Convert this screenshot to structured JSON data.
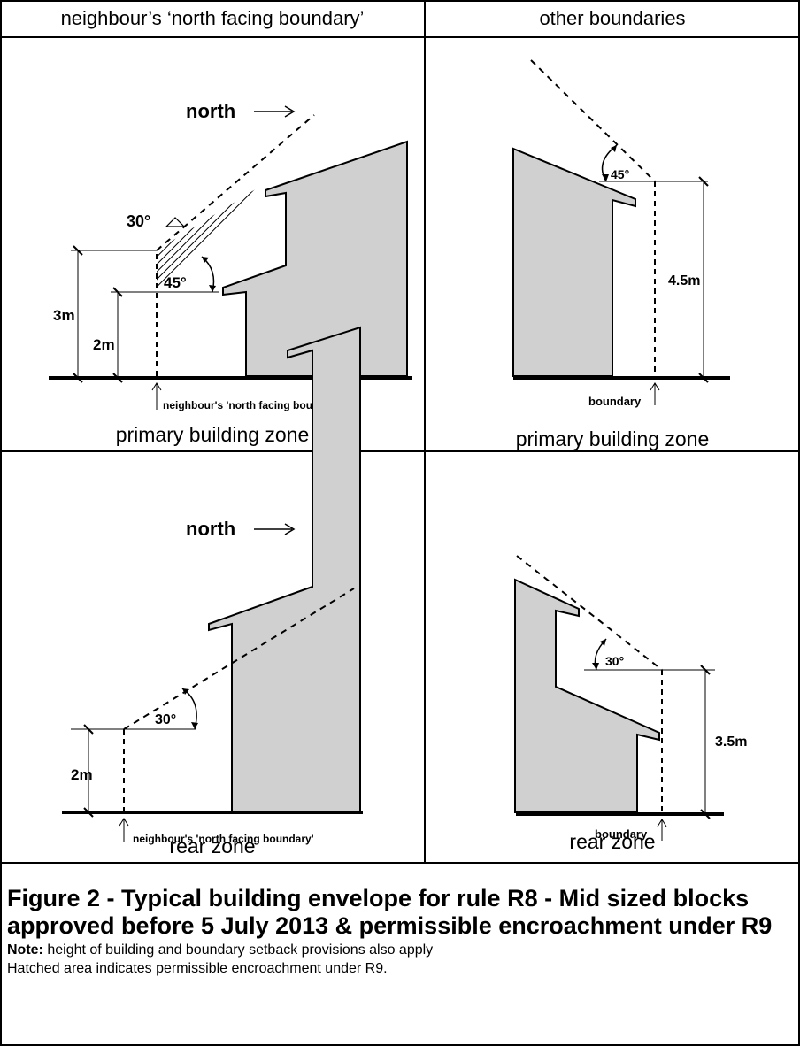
{
  "headers": {
    "left": "neighbour’s ‘north facing boundary’",
    "right": "other boundaries"
  },
  "panels": {
    "top_left": {
      "north_label": "north",
      "angle_small": "30°",
      "angle_main": "45°",
      "height_outer": "3m",
      "height_inner": "2m",
      "boundary_label": "neighbour's 'north facing boundary'",
      "zone": "primary building zone"
    },
    "top_right": {
      "angle": "45°",
      "height": "4.5m",
      "boundary_label": "boundary",
      "zone": "primary building zone"
    },
    "bottom_left": {
      "north_label": "north",
      "angle": "30°",
      "height": "2m",
      "boundary_label": "neighbour's 'north facing boundary'",
      "zone": "rear zone"
    },
    "bottom_right": {
      "angle": "30°",
      "height": "3.5m",
      "boundary_label": "boundary",
      "zone": "rear zone"
    }
  },
  "caption": {
    "title": "Figure 2 - Typical building envelope for rule R8 - Mid sized blocks approved before 5 July 2013 & permissible encroachment under R9",
    "note_label": "Note:",
    "note_text": " height of building and boundary setback provisions also apply",
    "hatch_note": "Hatched area indicates permissible encroachment under R9."
  }
}
